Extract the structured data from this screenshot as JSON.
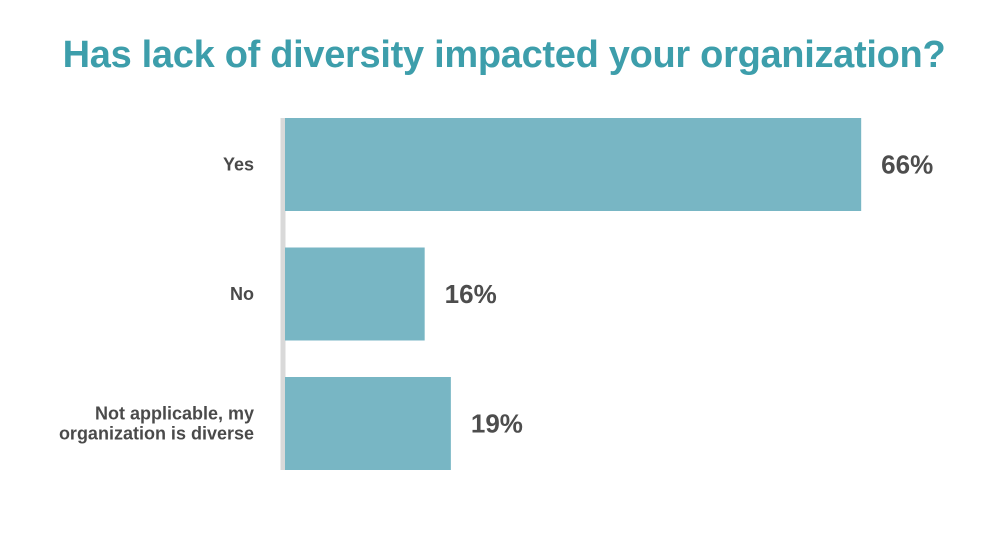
{
  "chart_data": {
    "type": "bar",
    "orientation": "horizontal",
    "title": "Has lack of diversity impacted your organization?",
    "categories": [
      [
        "Yes"
      ],
      [
        "No"
      ],
      [
        "Not applicable, my",
        "organization is diverse"
      ]
    ],
    "values": [
      66,
      16,
      19
    ],
    "value_labels": [
      "66%",
      "16%",
      "19%"
    ],
    "xlim": [
      0,
      100
    ],
    "grid": false,
    "legend": "none"
  },
  "colors": {
    "title": "#3d9eab",
    "bar": "#78b6c4",
    "axis": "#d9d9d9",
    "category_text": "#4a4a4a",
    "value_text": "#4d4d4d"
  }
}
